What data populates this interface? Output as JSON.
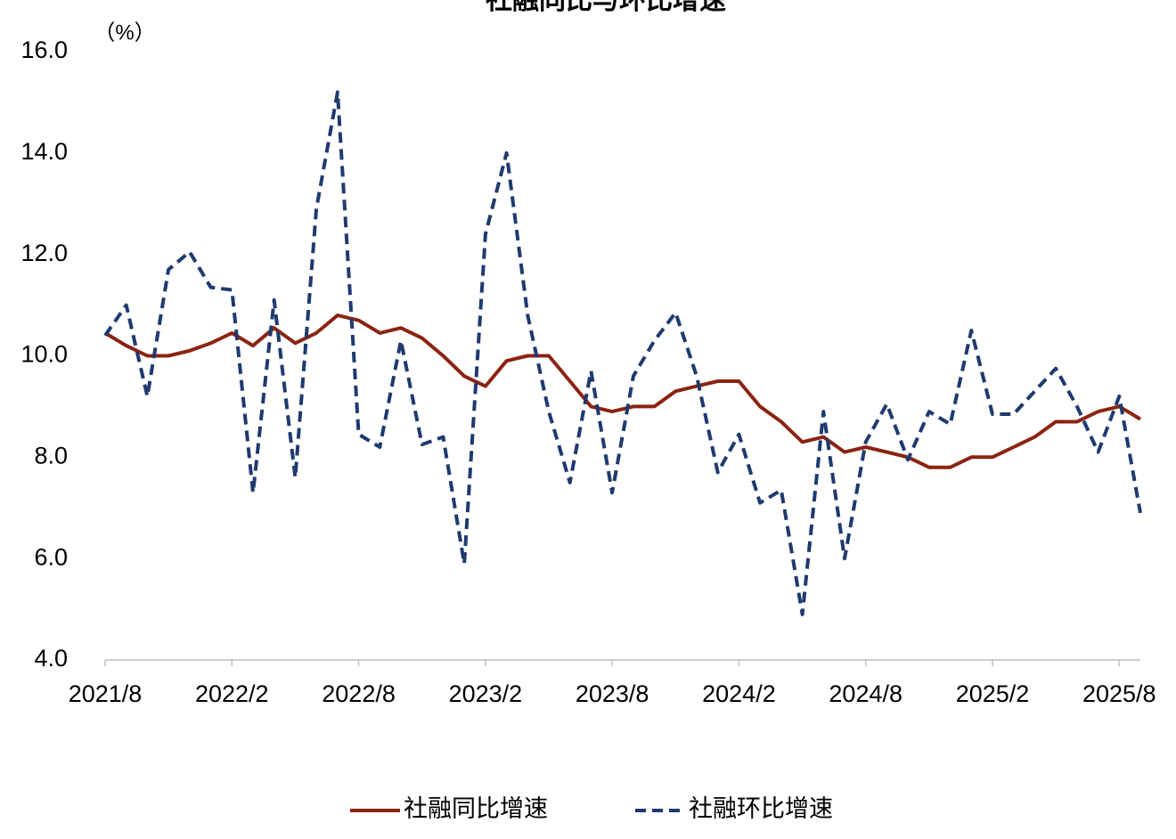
{
  "chart_data": {
    "type": "line",
    "title": "社融同比与环比增速",
    "y_unit_label": "（%）",
    "categories": [
      "2021/8",
      null,
      null,
      null,
      null,
      null,
      "2022/2",
      null,
      null,
      null,
      null,
      null,
      "2022/8",
      null,
      null,
      null,
      null,
      null,
      "2023/2",
      null,
      null,
      null,
      null,
      null,
      "2023/8",
      null,
      null,
      null,
      null,
      null,
      "2024/2",
      null,
      null,
      null,
      null,
      null,
      "2024/8",
      null,
      null,
      null,
      null,
      null,
      "2025/2",
      null,
      null,
      null,
      null,
      null,
      "2025/8",
      null
    ],
    "series": [
      {
        "name": "社融同比增速",
        "color": "#8b2311",
        "dash": false,
        "values": [
          10.45,
          10.2,
          10.0,
          10.0,
          10.1,
          10.25,
          10.45,
          10.2,
          10.55,
          10.25,
          10.45,
          10.8,
          10.7,
          10.45,
          10.55,
          10.35,
          10.0,
          9.6,
          9.4,
          9.9,
          10.0,
          10.0,
          9.5,
          9.0,
          8.9,
          9.0,
          9.0,
          9.3,
          9.4,
          9.5,
          9.5,
          9.0,
          8.7,
          8.3,
          8.4,
          8.1,
          8.2,
          8.1,
          8.0,
          7.8,
          7.8,
          8.0,
          8.0,
          8.2,
          8.4,
          8.7,
          8.7,
          8.9,
          9.0,
          8.75
        ]
      },
      {
        "name": "社融环比增速",
        "color": "#1f3a6e",
        "dash": true,
        "values": [
          10.4,
          11.0,
          9.2,
          11.7,
          12.05,
          11.35,
          11.3,
          7.3,
          11.1,
          7.6,
          12.9,
          15.2,
          8.45,
          8.2,
          10.3,
          8.25,
          8.4,
          5.9,
          12.4,
          14.0,
          10.8,
          8.9,
          7.5,
          9.7,
          7.3,
          9.6,
          10.3,
          10.85,
          9.6,
          7.7,
          8.45,
          7.1,
          7.35,
          4.9,
          8.9,
          6.0,
          8.3,
          9.05,
          7.95,
          8.9,
          8.65,
          10.5,
          8.85,
          8.85,
          9.3,
          9.75,
          9.0,
          8.1,
          9.2,
          6.9
        ]
      }
    ],
    "ylim": [
      4,
      16
    ],
    "yticks": [
      {
        "value": 4,
        "label": "4.0"
      },
      {
        "value": 6,
        "label": "6.0"
      },
      {
        "value": 8,
        "label": "8.0"
      },
      {
        "value": 10,
        "label": "10.0"
      },
      {
        "value": 12,
        "label": "12.0"
      },
      {
        "value": 14,
        "label": "14.0"
      },
      {
        "value": 16,
        "label": "16.0"
      }
    ],
    "grid": false,
    "legend": "bottom"
  }
}
